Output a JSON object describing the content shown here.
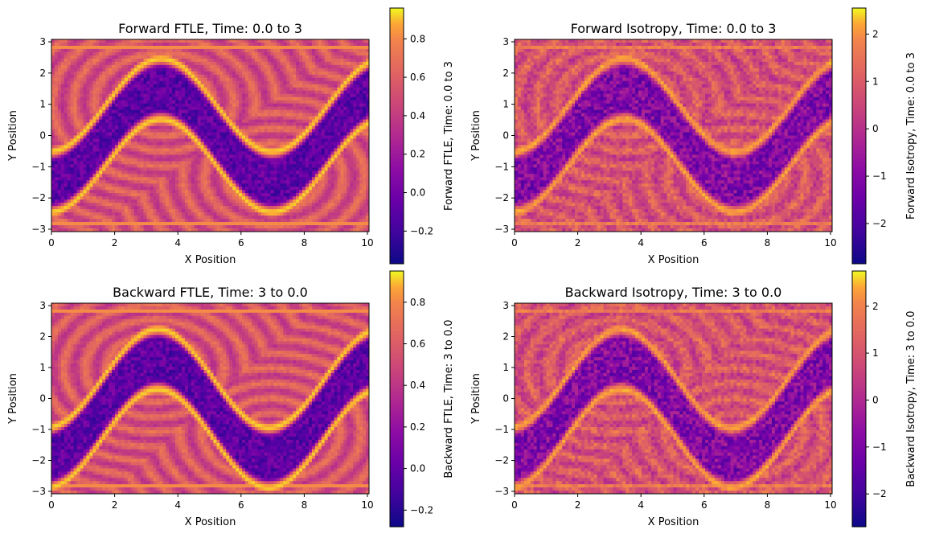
{
  "chart_data": [
    {
      "type": "heatmap",
      "title": "Forward FTLE, Time: 0.0 to 3",
      "xlabel": "X Position",
      "ylabel": "Y Position",
      "xlim": [
        0,
        10
      ],
      "ylim": [
        -3,
        3
      ],
      "xticks": [
        "0",
        "2",
        "4",
        "6",
        "8",
        "10"
      ],
      "yticks": [
        "3",
        "2",
        "1",
        "0",
        "−1",
        "−2",
        "−3"
      ],
      "colorbar": {
        "label": "Forward FTLE, Time: 0.0 to 3",
        "range": [
          -0.37,
          0.96
        ],
        "ticks": [
          "0.8",
          "0.6",
          "0.4",
          "0.2",
          "0.0",
          "−0.2"
        ],
        "tick_values": [
          0.8,
          0.6,
          0.4,
          0.2,
          0.0,
          -0.2
        ],
        "colormap": "plasma"
      },
      "field": "forward-ftle"
    },
    {
      "type": "heatmap",
      "title": "Forward Isotropy, Time: 0.0 to 3",
      "xlabel": "X Position",
      "ylabel": "Y Position",
      "xlim": [
        0,
        10
      ],
      "ylim": [
        -3,
        3
      ],
      "xticks": [
        "0",
        "2",
        "4",
        "6",
        "8",
        "10"
      ],
      "yticks": [
        "3",
        "2",
        "1",
        "0",
        "−1",
        "−2",
        "−3"
      ],
      "colorbar": {
        "label": "Forward Isotropy, Time: 0.0 to 3",
        "range": [
          -2.85,
          2.55
        ],
        "ticks": [
          "2",
          "1",
          "0",
          "−1",
          "−2"
        ],
        "tick_values": [
          2,
          1,
          0,
          -1,
          -2
        ],
        "colormap": "plasma"
      },
      "field": "forward-isotropy"
    },
    {
      "type": "heatmap",
      "title": "Backward FTLE, Time: 3 to 0.0",
      "xlabel": "X Position",
      "ylabel": "Y Position",
      "xlim": [
        0,
        10
      ],
      "ylim": [
        -3,
        3
      ],
      "xticks": [
        "0",
        "2",
        "4",
        "6",
        "8",
        "10"
      ],
      "yticks": [
        "3",
        "2",
        "1",
        "0",
        "−1",
        "−2",
        "−3"
      ],
      "colorbar": {
        "label": "Backward FTLE, Time: 3 to 0.0",
        "range": [
          -0.28,
          0.95
        ],
        "ticks": [
          "0.8",
          "0.6",
          "0.4",
          "0.2",
          "0.0",
          "−0.2"
        ],
        "tick_values": [
          0.8,
          0.6,
          0.4,
          0.2,
          0.0,
          -0.2
        ],
        "colormap": "plasma"
      },
      "field": "backward-ftle"
    },
    {
      "type": "heatmap",
      "title": "Backward Isotropy, Time: 3 to 0.0",
      "xlabel": "X Position",
      "ylabel": "Y Position",
      "xlim": [
        0,
        10
      ],
      "ylim": [
        -3,
        3
      ],
      "xticks": [
        "0",
        "2",
        "4",
        "6",
        "8",
        "10"
      ],
      "yticks": [
        "3",
        "2",
        "1",
        "0",
        "−1",
        "−2",
        "−3"
      ],
      "colorbar": {
        "label": "Backward Isotropy, Time: 3 to 0.0",
        "range": [
          -2.7,
          2.75
        ],
        "ticks": [
          "2",
          "1",
          "0",
          "−1",
          "−2"
        ],
        "tick_values": [
          2,
          1,
          0,
          -1,
          -2
        ],
        "colormap": "plasma"
      },
      "field": "backward-isotropy"
    }
  ]
}
